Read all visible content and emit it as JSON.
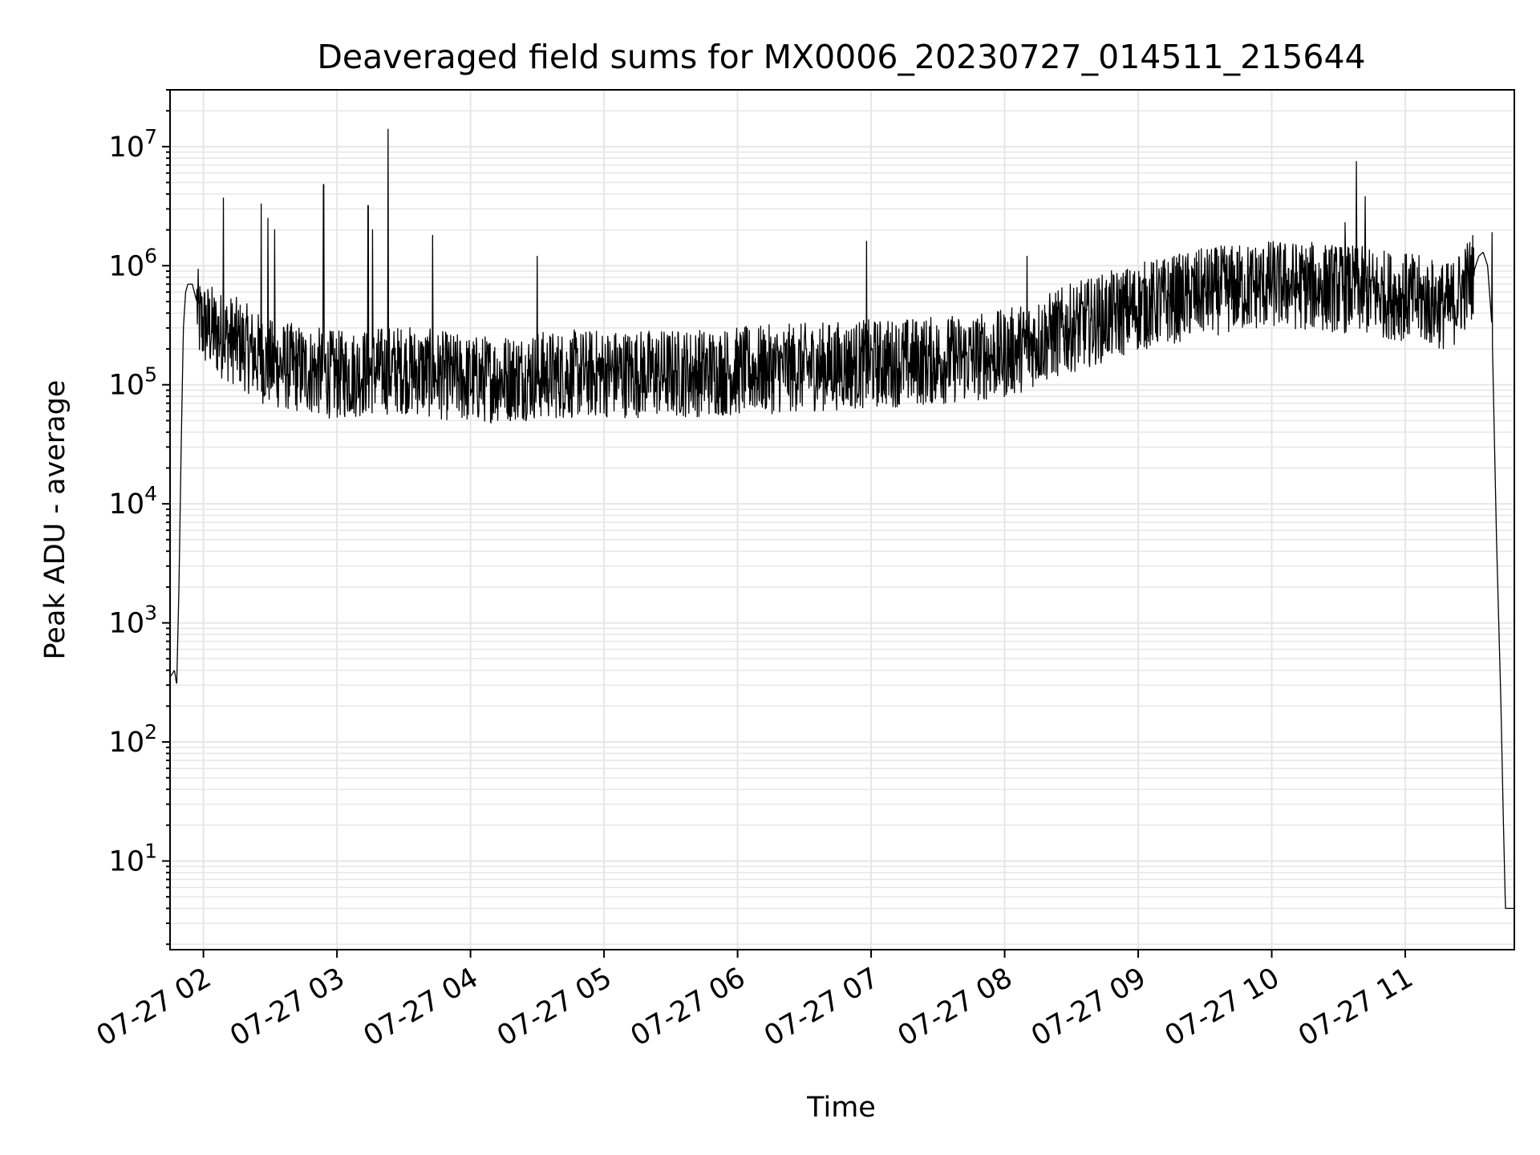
{
  "chart_data": {
    "type": "line",
    "title": "Deaveraged field sums for MX0006_20230727_014511_215644",
    "xlabel": "Time",
    "ylabel": "Peak ADU - average",
    "yscale": "log",
    "ylim": [
      1.8,
      30000000
    ],
    "xlim": [
      "2023-07-27 01:45",
      "2023-07-27 11:49"
    ],
    "grid": true,
    "grid_minor": true,
    "line_color": "#000000",
    "grid_color": "#e6e6e6",
    "x_ticks": [
      {
        "value": "2023-07-27 02:00",
        "label": "07-27 02"
      },
      {
        "value": "2023-07-27 03:00",
        "label": "07-27 03"
      },
      {
        "value": "2023-07-27 04:00",
        "label": "07-27 04"
      },
      {
        "value": "2023-07-27 05:00",
        "label": "07-27 05"
      },
      {
        "value": "2023-07-27 06:00",
        "label": "07-27 06"
      },
      {
        "value": "2023-07-27 07:00",
        "label": "07-27 07"
      },
      {
        "value": "2023-07-27 08:00",
        "label": "07-27 08"
      },
      {
        "value": "2023-07-27 09:00",
        "label": "07-27 09"
      },
      {
        "value": "2023-07-27 10:00",
        "label": "07-27 10"
      },
      {
        "value": "2023-07-27 11:00",
        "label": "07-27 11"
      }
    ],
    "y_ticks": [
      {
        "value": 10,
        "base": "10",
        "exp": "1"
      },
      {
        "value": 100,
        "base": "10",
        "exp": "2"
      },
      {
        "value": 1000,
        "base": "10",
        "exp": "3"
      },
      {
        "value": 10000,
        "base": "10",
        "exp": "4"
      },
      {
        "value": 100000,
        "base": "10",
        "exp": "5"
      },
      {
        "value": 1000000,
        "base": "10",
        "exp": "6"
      },
      {
        "value": 10000000,
        "base": "10",
        "exp": "7"
      }
    ],
    "series": [
      {
        "x": [
          "2023-07-27 01:45",
          "2023-07-27 01:47",
          "2023-07-27 01:48",
          "2023-07-27 01:49",
          "2023-07-27 01:50",
          "2023-07-27 01:51",
          "2023-07-27 01:52",
          "2023-07-27 01:53",
          "2023-07-27 01:55",
          "2023-07-27 01:57",
          "2023-07-27 01:58",
          "2023-07-27 02:00",
          "2023-07-27 02:03",
          "2023-07-27 02:06",
          "2023-07-27 02:10",
          "2023-07-27 02:15",
          "2023-07-27 02:20",
          "2023-07-27 02:25",
          "2023-07-27 02:30",
          "2023-07-27 02:40",
          "2023-07-27 02:50",
          "2023-07-27 03:00",
          "2023-07-27 03:15",
          "2023-07-27 03:30",
          "2023-07-27 04:00",
          "2023-07-27 04:30",
          "2023-07-27 05:00",
          "2023-07-27 05:30",
          "2023-07-27 06:00",
          "2023-07-27 06:30",
          "2023-07-27 07:00",
          "2023-07-27 07:30",
          "2023-07-27 08:00",
          "2023-07-27 08:30",
          "2023-07-27 09:00",
          "2023-07-27 09:30",
          "2023-07-27 10:00",
          "2023-07-27 10:30",
          "2023-07-27 11:00",
          "2023-07-27 11:20",
          "2023-07-27 11:30",
          "2023-07-27 11:33",
          "2023-07-27 11:35",
          "2023-07-27 11:37",
          "2023-07-27 11:39",
          "2023-07-27 11:41",
          "2023-07-27 11:43",
          "2023-07-27 11:44",
          "2023-07-27 11:45",
          "2023-07-27 11:47",
          "2023-07-27 11:49"
        ],
        "y": [
          350,
          400,
          300,
          2000,
          30000,
          300000,
          600000,
          700000,
          700000,
          500000,
          350000,
          320000,
          300000,
          270000,
          250000,
          230000,
          200000,
          170000,
          150000,
          140000,
          130000,
          120000,
          130000,
          135000,
          110000,
          120000,
          125000,
          125000,
          130000,
          140000,
          150000,
          160000,
          180000,
          300000,
          450000,
          600000,
          700000,
          650000,
          550000,
          450000,
          800000,
          1200000,
          1300000,
          1000000,
          300000,
          5000,
          200,
          25,
          4,
          4,
          4
        ]
      }
    ],
    "spikes": [
      {
        "x": "2023-07-27 02:09",
        "y": 3700000
      },
      {
        "x": "2023-07-27 02:26",
        "y": 3300000
      },
      {
        "x": "2023-07-27 02:29",
        "y": 2500000
      },
      {
        "x": "2023-07-27 02:32",
        "y": 2000000
      },
      {
        "x": "2023-07-27 02:54",
        "y": 4800000
      },
      {
        "x": "2023-07-27 03:14",
        "y": 3200000
      },
      {
        "x": "2023-07-27 03:16",
        "y": 2000000
      },
      {
        "x": "2023-07-27 03:23",
        "y": 14000000
      },
      {
        "x": "2023-07-27 03:43",
        "y": 1800000
      },
      {
        "x": "2023-07-27 04:30",
        "y": 1200000
      },
      {
        "x": "2023-07-27 06:58",
        "y": 1600000
      },
      {
        "x": "2023-07-27 08:10",
        "y": 1200000
      },
      {
        "x": "2023-07-27 10:38",
        "y": 7500000
      },
      {
        "x": "2023-07-27 10:42",
        "y": 3800000
      },
      {
        "x": "2023-07-27 10:33",
        "y": 2300000
      },
      {
        "x": "2023-07-27 11:39",
        "y": 1900000
      }
    ]
  }
}
